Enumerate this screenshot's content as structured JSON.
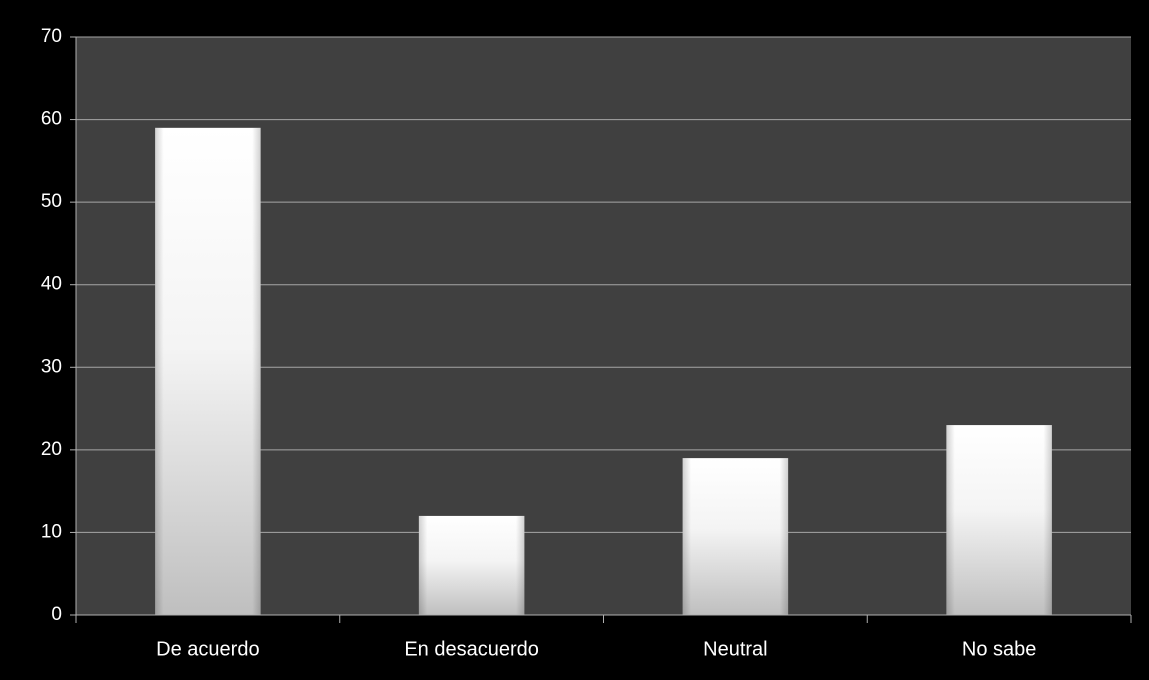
{
  "colors": {
    "page_background": "#000000",
    "plot_background": "#404040",
    "gridline": "#a6a6a6",
    "axis": "#b0b0b0",
    "bar_top": "#ffffff",
    "bar_bottom": "#bfbfbf",
    "text": "#ffffff"
  },
  "chart_data": {
    "type": "bar",
    "categories": [
      "De acuerdo",
      "En desacuerdo",
      "Neutral",
      "No sabe"
    ],
    "values": [
      59,
      12,
      19,
      23
    ],
    "ylim": [
      0,
      70
    ],
    "yticks": [
      0,
      10,
      20,
      30,
      40,
      50,
      60,
      70
    ],
    "grid": true,
    "legend": "none"
  }
}
